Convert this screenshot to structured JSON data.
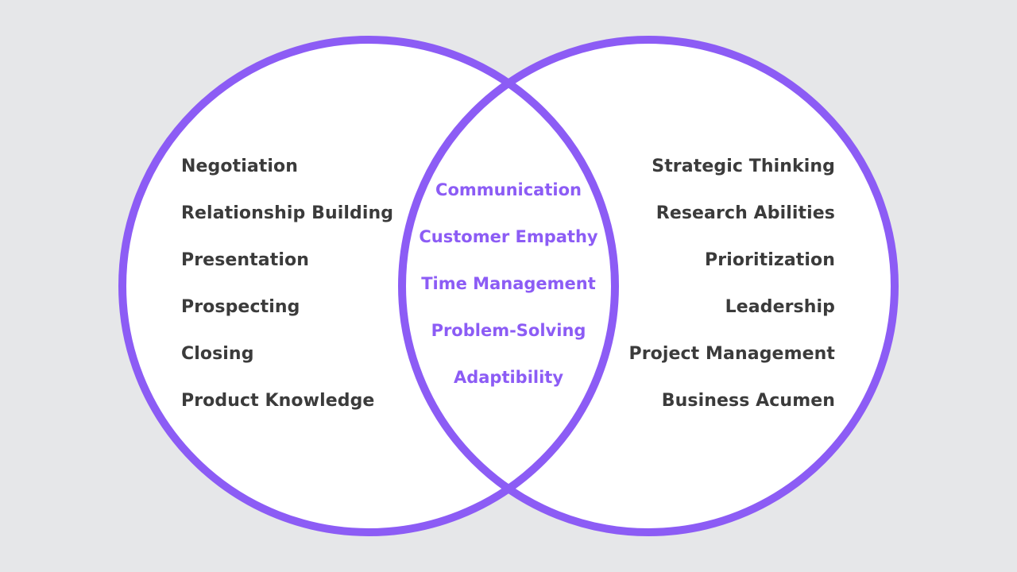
{
  "colors": {
    "background": "#e6e7e9",
    "circle_fill": "#ffffff",
    "circle_stroke": "#8c5cf5",
    "side_text": "#3b3b3b",
    "center_text": "#8c5cf5"
  },
  "left_set": {
    "items": [
      "Negotiation",
      "Relationship Building",
      "Presentation",
      "Prospecting",
      "Closing",
      "Product Knowledge"
    ]
  },
  "overlap": {
    "items": [
      "Communication",
      "Customer Empathy",
      "Time Management",
      "Problem-Solving",
      "Adaptibility"
    ]
  },
  "right_set": {
    "items": [
      "Strategic Thinking",
      "Research Abilities",
      "Prioritization",
      "Leadership",
      "Project Management",
      "Business Acumen"
    ]
  }
}
